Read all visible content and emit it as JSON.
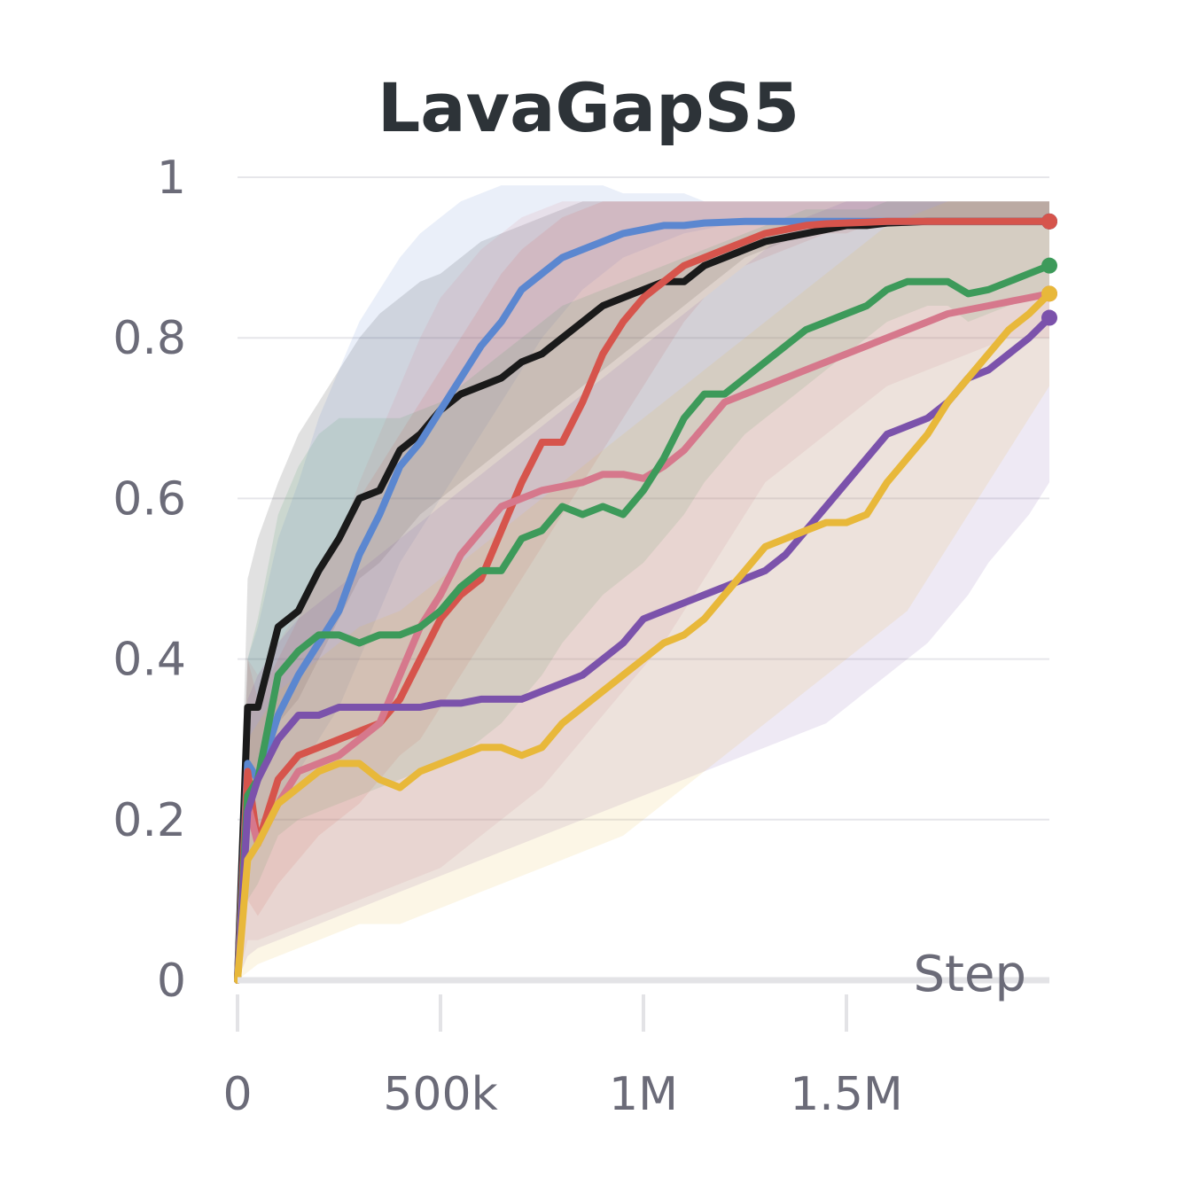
{
  "chart_data": {
    "type": "line",
    "title": "LavaGapS5",
    "xlabel": "Step",
    "ylabel": "",
    "xlim": [
      0,
      2000000
    ],
    "ylim": [
      0,
      1
    ],
    "x_ticks": [
      {
        "value": 0,
        "label": "0"
      },
      {
        "value": 500000,
        "label": "500k"
      },
      {
        "value": 1000000,
        "label": "1M"
      },
      {
        "value": 1500000,
        "label": "1.5M"
      }
    ],
    "y_ticks": [
      {
        "value": 0,
        "label": "0"
      },
      {
        "value": 0.2,
        "label": "0.2"
      },
      {
        "value": 0.4,
        "label": "0.4"
      },
      {
        "value": 0.6,
        "label": "0.6"
      },
      {
        "value": 0.8,
        "label": "0.8"
      },
      {
        "value": 1,
        "label": "1"
      }
    ],
    "grid": true,
    "x": [
      0,
      25000,
      50000,
      100000,
      150000,
      200000,
      250000,
      300000,
      350000,
      400000,
      450000,
      500000,
      550000,
      600000,
      650000,
      700000,
      750000,
      800000,
      850000,
      900000,
      950000,
      1000000,
      1050000,
      1100000,
      1150000,
      1200000,
      1250000,
      1300000,
      1350000,
      1400000,
      1450000,
      1500000,
      1550000,
      1600000,
      1650000,
      1700000,
      1750000,
      1800000,
      1850000,
      1900000,
      1950000,
      2000000
    ],
    "series": [
      {
        "name": "black",
        "color": "#1a1a1a",
        "values": [
          0,
          0.34,
          0.34,
          0.44,
          0.46,
          0.51,
          0.55,
          0.6,
          0.61,
          0.66,
          0.68,
          0.71,
          0.73,
          0.74,
          0.75,
          0.77,
          0.78,
          0.8,
          0.82,
          0.84,
          0.85,
          0.86,
          0.87,
          0.87,
          0.89,
          0.9,
          0.91,
          0.92,
          0.925,
          0.93,
          0.935,
          0.94,
          0.94,
          0.943,
          0.944,
          0.945,
          0.945,
          0.945,
          0.945,
          0.945,
          0.945,
          0.945
        ],
        "band_lower": [
          0,
          0.2,
          0.25,
          0.32,
          0.35,
          0.4,
          0.45,
          0.5,
          0.52,
          0.55,
          0.58,
          0.6,
          0.62,
          0.64,
          0.66,
          0.68,
          0.7,
          0.72,
          0.74,
          0.76,
          0.78,
          0.8,
          0.82,
          0.84,
          0.86,
          0.88,
          0.9,
          0.91,
          0.92,
          0.93,
          0.93,
          0.94,
          0.94,
          0.94,
          0.94,
          0.94,
          0.94,
          0.94,
          0.94,
          0.94,
          0.94,
          0.94
        ],
        "band_upper": [
          0.05,
          0.5,
          0.55,
          0.62,
          0.68,
          0.72,
          0.76,
          0.8,
          0.83,
          0.85,
          0.87,
          0.88,
          0.9,
          0.92,
          0.93,
          0.94,
          0.95,
          0.96,
          0.97,
          0.97,
          0.97,
          0.97,
          0.97,
          0.97,
          0.97,
          0.97,
          0.97,
          0.97,
          0.97,
          0.97,
          0.97,
          0.97,
          0.97,
          0.97,
          0.97,
          0.97,
          0.97,
          0.97,
          0.97,
          0.97,
          0.97,
          0.97
        ]
      },
      {
        "name": "blue",
        "color": "#5b87d0",
        "values": [
          0,
          0.27,
          0.25,
          0.33,
          0.38,
          0.42,
          0.46,
          0.53,
          0.58,
          0.64,
          0.67,
          0.71,
          0.75,
          0.79,
          0.82,
          0.86,
          0.88,
          0.9,
          0.91,
          0.92,
          0.93,
          0.935,
          0.94,
          0.94,
          0.943,
          0.944,
          0.945,
          0.945,
          0.945,
          0.945,
          0.945,
          0.945,
          0.945,
          0.945,
          0.945,
          0.945,
          0.945,
          0.945,
          0.945,
          0.945,
          0.945,
          0.945
        ],
        "band_lower": [
          0,
          0.15,
          0.18,
          0.22,
          0.26,
          0.3,
          0.34,
          0.4,
          0.46,
          0.52,
          0.56,
          0.6,
          0.64,
          0.68,
          0.72,
          0.76,
          0.8,
          0.83,
          0.86,
          0.88,
          0.9,
          0.91,
          0.92,
          0.93,
          0.935,
          0.94,
          0.94,
          0.94,
          0.94,
          0.94,
          0.94,
          0.94,
          0.94,
          0.94,
          0.94,
          0.94,
          0.94,
          0.94,
          0.94,
          0.94,
          0.94,
          0.94
        ],
        "band_upper": [
          0.05,
          0.4,
          0.44,
          0.55,
          0.62,
          0.7,
          0.76,
          0.82,
          0.86,
          0.9,
          0.93,
          0.95,
          0.97,
          0.98,
          0.99,
          0.99,
          0.99,
          0.99,
          0.99,
          0.99,
          0.98,
          0.98,
          0.98,
          0.98,
          0.97,
          0.97,
          0.97,
          0.97,
          0.97,
          0.97,
          0.97,
          0.97,
          0.97,
          0.97,
          0.97,
          0.97,
          0.97,
          0.97,
          0.97,
          0.97,
          0.97,
          0.97
        ]
      },
      {
        "name": "red",
        "color": "#d6544c",
        "values": [
          0,
          0.26,
          0.17,
          0.25,
          0.28,
          0.29,
          0.3,
          0.31,
          0.32,
          0.35,
          0.4,
          0.45,
          0.48,
          0.5,
          0.56,
          0.62,
          0.67,
          0.67,
          0.72,
          0.78,
          0.82,
          0.85,
          0.87,
          0.89,
          0.9,
          0.91,
          0.92,
          0.93,
          0.935,
          0.94,
          0.942,
          0.943,
          0.944,
          0.945,
          0.945,
          0.945,
          0.945,
          0.945,
          0.945,
          0.945,
          0.945,
          0.945
        ],
        "band_lower": [
          0,
          0.1,
          0.08,
          0.12,
          0.15,
          0.18,
          0.2,
          0.22,
          0.25,
          0.28,
          0.3,
          0.34,
          0.38,
          0.42,
          0.46,
          0.5,
          0.54,
          0.58,
          0.62,
          0.66,
          0.7,
          0.74,
          0.78,
          0.82,
          0.85,
          0.87,
          0.89,
          0.9,
          0.91,
          0.92,
          0.93,
          0.93,
          0.94,
          0.94,
          0.94,
          0.94,
          0.94,
          0.94,
          0.94,
          0.94,
          0.94,
          0.94
        ],
        "band_upper": [
          0.05,
          0.4,
          0.35,
          0.4,
          0.45,
          0.5,
          0.55,
          0.6,
          0.64,
          0.68,
          0.72,
          0.76,
          0.8,
          0.84,
          0.88,
          0.91,
          0.93,
          0.95,
          0.96,
          0.97,
          0.97,
          0.97,
          0.97,
          0.97,
          0.97,
          0.97,
          0.97,
          0.97,
          0.97,
          0.97,
          0.97,
          0.97,
          0.97,
          0.97,
          0.97,
          0.97,
          0.97,
          0.97,
          0.97,
          0.97,
          0.97,
          0.97
        ]
      },
      {
        "name": "pink",
        "color": "#d6788c",
        "values": [
          0,
          0.22,
          0.17,
          0.22,
          0.26,
          0.27,
          0.28,
          0.3,
          0.32,
          0.38,
          0.44,
          0.48,
          0.53,
          0.56,
          0.59,
          0.6,
          0.61,
          0.615,
          0.62,
          0.63,
          0.63,
          0.625,
          0.64,
          0.66,
          0.69,
          0.72,
          0.73,
          0.74,
          0.75,
          0.76,
          0.77,
          0.78,
          0.79,
          0.8,
          0.81,
          0.82,
          0.83,
          0.835,
          0.84,
          0.845,
          0.85,
          0.855
        ],
        "band_lower": [
          0,
          0.05,
          0.05,
          0.06,
          0.07,
          0.08,
          0.09,
          0.1,
          0.11,
          0.12,
          0.13,
          0.14,
          0.16,
          0.18,
          0.2,
          0.22,
          0.24,
          0.27,
          0.3,
          0.33,
          0.36,
          0.39,
          0.42,
          0.46,
          0.5,
          0.54,
          0.58,
          0.62,
          0.64,
          0.66,
          0.68,
          0.7,
          0.72,
          0.74,
          0.75,
          0.76,
          0.77,
          0.78,
          0.79,
          0.8,
          0.8,
          0.8
        ],
        "band_upper": [
          0.05,
          0.4,
          0.38,
          0.42,
          0.46,
          0.5,
          0.55,
          0.62,
          0.68,
          0.74,
          0.8,
          0.85,
          0.88,
          0.91,
          0.93,
          0.95,
          0.96,
          0.97,
          0.97,
          0.97,
          0.97,
          0.97,
          0.97,
          0.97,
          0.97,
          0.97,
          0.97,
          0.97,
          0.97,
          0.97,
          0.97,
          0.97,
          0.97,
          0.97,
          0.97,
          0.97,
          0.97,
          0.97,
          0.97,
          0.97,
          0.97,
          0.97
        ]
      },
      {
        "name": "green",
        "color": "#3d9a5a",
        "values": [
          0,
          0.23,
          0.25,
          0.38,
          0.41,
          0.43,
          0.43,
          0.42,
          0.43,
          0.43,
          0.44,
          0.46,
          0.49,
          0.51,
          0.51,
          0.55,
          0.56,
          0.59,
          0.58,
          0.59,
          0.58,
          0.61,
          0.65,
          0.7,
          0.73,
          0.73,
          0.75,
          0.77,
          0.79,
          0.81,
          0.82,
          0.83,
          0.84,
          0.86,
          0.87,
          0.87,
          0.87,
          0.855,
          0.86,
          0.87,
          0.88,
          0.89
        ],
        "band_lower": [
          0,
          0.1,
          0.12,
          0.18,
          0.2,
          0.21,
          0.22,
          0.23,
          0.24,
          0.25,
          0.26,
          0.27,
          0.28,
          0.3,
          0.32,
          0.35,
          0.38,
          0.42,
          0.45,
          0.48,
          0.5,
          0.52,
          0.55,
          0.58,
          0.62,
          0.65,
          0.68,
          0.7,
          0.72,
          0.74,
          0.76,
          0.78,
          0.8,
          0.82,
          0.83,
          0.84,
          0.84,
          0.82,
          0.83,
          0.84,
          0.85,
          0.86
        ],
        "band_upper": [
          0.05,
          0.4,
          0.45,
          0.58,
          0.64,
          0.68,
          0.7,
          0.7,
          0.7,
          0.7,
          0.71,
          0.72,
          0.74,
          0.76,
          0.78,
          0.8,
          0.82,
          0.84,
          0.85,
          0.86,
          0.87,
          0.88,
          0.89,
          0.9,
          0.91,
          0.92,
          0.93,
          0.94,
          0.95,
          0.96,
          0.96,
          0.96,
          0.96,
          0.97,
          0.97,
          0.97,
          0.97,
          0.97,
          0.97,
          0.97,
          0.97,
          0.97
        ]
      },
      {
        "name": "purple",
        "color": "#7b52ab",
        "values": [
          0,
          0.21,
          0.25,
          0.3,
          0.33,
          0.33,
          0.34,
          0.34,
          0.34,
          0.34,
          0.34,
          0.345,
          0.345,
          0.35,
          0.35,
          0.35,
          0.36,
          0.37,
          0.38,
          0.4,
          0.42,
          0.45,
          0.46,
          0.47,
          0.48,
          0.49,
          0.5,
          0.51,
          0.53,
          0.56,
          0.59,
          0.62,
          0.65,
          0.68,
          0.69,
          0.7,
          0.72,
          0.75,
          0.76,
          0.78,
          0.8,
          0.825
        ],
        "band_lower": [
          0,
          0.03,
          0.04,
          0.05,
          0.06,
          0.07,
          0.08,
          0.09,
          0.1,
          0.11,
          0.12,
          0.13,
          0.14,
          0.15,
          0.16,
          0.17,
          0.18,
          0.19,
          0.2,
          0.21,
          0.22,
          0.23,
          0.24,
          0.25,
          0.26,
          0.27,
          0.28,
          0.29,
          0.3,
          0.31,
          0.32,
          0.34,
          0.36,
          0.38,
          0.4,
          0.42,
          0.45,
          0.48,
          0.52,
          0.55,
          0.58,
          0.62
        ],
        "band_upper": [
          0.05,
          0.35,
          0.38,
          0.42,
          0.45,
          0.47,
          0.49,
          0.51,
          0.53,
          0.55,
          0.57,
          0.59,
          0.61,
          0.63,
          0.65,
          0.67,
          0.69,
          0.71,
          0.73,
          0.75,
          0.77,
          0.79,
          0.81,
          0.83,
          0.85,
          0.87,
          0.89,
          0.91,
          0.93,
          0.95,
          0.96,
          0.97,
          0.97,
          0.97,
          0.97,
          0.97,
          0.97,
          0.97,
          0.97,
          0.97,
          0.97,
          0.97
        ]
      },
      {
        "name": "yellow",
        "color": "#e8b83a",
        "values": [
          0,
          0.15,
          0.17,
          0.22,
          0.24,
          0.26,
          0.27,
          0.27,
          0.25,
          0.24,
          0.26,
          0.27,
          0.28,
          0.29,
          0.29,
          0.28,
          0.29,
          0.32,
          0.34,
          0.36,
          0.38,
          0.4,
          0.42,
          0.43,
          0.45,
          0.48,
          0.51,
          0.54,
          0.55,
          0.56,
          0.57,
          0.57,
          0.58,
          0.62,
          0.65,
          0.68,
          0.72,
          0.75,
          0.78,
          0.81,
          0.83,
          0.855
        ],
        "band_lower": [
          0,
          0.01,
          0.02,
          0.03,
          0.04,
          0.05,
          0.06,
          0.07,
          0.07,
          0.07,
          0.08,
          0.09,
          0.1,
          0.11,
          0.12,
          0.13,
          0.14,
          0.15,
          0.16,
          0.17,
          0.18,
          0.2,
          0.22,
          0.24,
          0.26,
          0.28,
          0.3,
          0.32,
          0.34,
          0.36,
          0.38,
          0.4,
          0.42,
          0.44,
          0.46,
          0.5,
          0.54,
          0.58,
          0.62,
          0.66,
          0.7,
          0.74
        ],
        "band_upper": [
          0.05,
          0.3,
          0.32,
          0.36,
          0.38,
          0.4,
          0.42,
          0.44,
          0.45,
          0.46,
          0.48,
          0.5,
          0.52,
          0.54,
          0.56,
          0.58,
          0.6,
          0.62,
          0.64,
          0.66,
          0.68,
          0.7,
          0.72,
          0.74,
          0.76,
          0.78,
          0.8,
          0.82,
          0.84,
          0.86,
          0.88,
          0.9,
          0.92,
          0.94,
          0.95,
          0.96,
          0.97,
          0.97,
          0.97,
          0.97,
          0.97,
          0.97
        ]
      }
    ]
  }
}
